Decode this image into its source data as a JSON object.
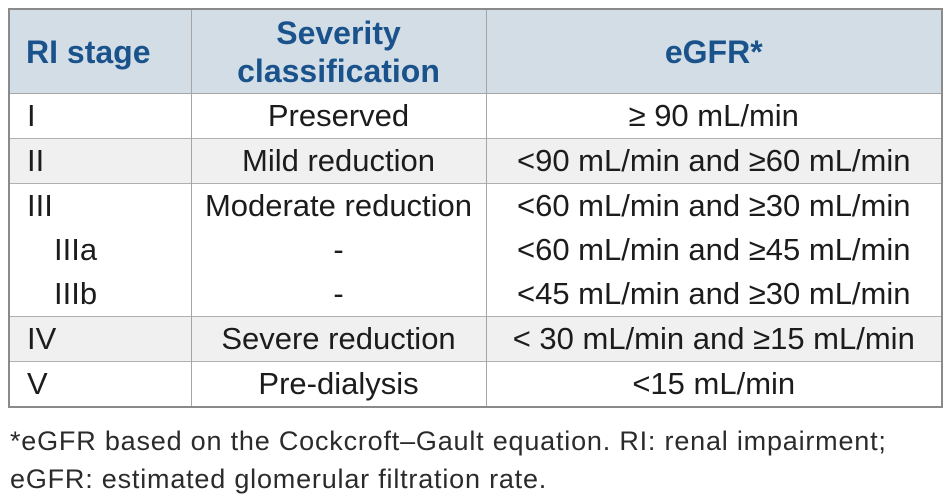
{
  "table": {
    "columns": [
      {
        "label": "RI stage"
      },
      {
        "label": "Severity classification"
      },
      {
        "label": "eGFR*"
      }
    ],
    "rows": [
      {
        "stage": "I",
        "severity": "Preserved",
        "egfr": "≥ 90 mL/min"
      },
      {
        "stage": "II",
        "severity": "Mild reduction",
        "egfr": "<90 mL/min and ≥60 mL/min"
      },
      {
        "stage": "III",
        "severity": "Moderate reduction",
        "egfr": "<60 mL/min and ≥30 mL/min"
      },
      {
        "stage": "IIIa",
        "severity": "-",
        "egfr": "<60 mL/min and ≥45 mL/min"
      },
      {
        "stage": "IIIb",
        "severity": "-",
        "egfr": "<45 mL/min and ≥30 mL/min"
      },
      {
        "stage": "IV",
        "severity": "Severe reduction",
        "egfr": "< 30 mL/min and ≥15 mL/min"
      },
      {
        "stage": "V",
        "severity": "Pre-dialysis",
        "egfr": "<15 mL/min"
      }
    ]
  },
  "footnote": "*eGFR based on the Cockcroft–Gault equation. RI: renal impairment; eGFR: estimated glomerular filtration rate.",
  "colors": {
    "header_background": "#d3dde6",
    "header_text": "#1a528c",
    "zebra_row_background": "#f0f0f0",
    "body_text": "#1c1c1c",
    "outer_border": "#8a8a8a",
    "inner_border": "#a5a5a5"
  }
}
